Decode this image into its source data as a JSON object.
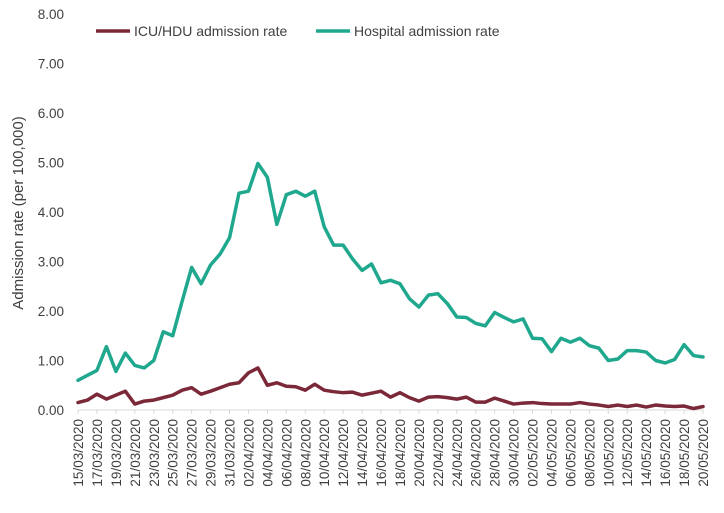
{
  "chart_data": {
    "type": "line",
    "title": "",
    "xlabel": "",
    "ylabel": "Admission rate (per 100,000)",
    "ylim": [
      0,
      8
    ],
    "yticks": [
      "0.00",
      "1.00",
      "2.00",
      "3.00",
      "4.00",
      "5.00",
      "6.00",
      "7.00",
      "8.00"
    ],
    "legend_position": "top-left",
    "grid": false,
    "x": [
      "15/03/2020",
      "16/03/2020",
      "17/03/2020",
      "18/03/2020",
      "19/03/2020",
      "20/03/2020",
      "21/03/2020",
      "22/03/2020",
      "23/03/2020",
      "24/03/2020",
      "25/03/2020",
      "26/03/2020",
      "27/03/2020",
      "28/03/2020",
      "29/03/2020",
      "30/03/2020",
      "31/03/2020",
      "01/04/2020",
      "02/04/2020",
      "03/04/2020",
      "04/04/2020",
      "05/04/2020",
      "06/04/2020",
      "07/04/2020",
      "08/04/2020",
      "09/04/2020",
      "10/04/2020",
      "11/04/2020",
      "12/04/2020",
      "13/04/2020",
      "14/04/2020",
      "15/04/2020",
      "16/04/2020",
      "17/04/2020",
      "18/04/2020",
      "19/04/2020",
      "20/04/2020",
      "21/04/2020",
      "22/04/2020",
      "23/04/2020",
      "24/04/2020",
      "25/04/2020",
      "26/04/2020",
      "27/04/2020",
      "28/04/2020",
      "29/04/2020",
      "30/04/2020",
      "01/05/2020",
      "02/05/2020",
      "03/05/2020",
      "04/05/2020",
      "05/05/2020",
      "06/05/2020",
      "07/05/2020",
      "08/05/2020",
      "09/05/2020",
      "10/05/2020",
      "11/05/2020",
      "12/05/2020",
      "13/05/2020",
      "14/05/2020",
      "15/05/2020",
      "16/05/2020",
      "17/05/2020",
      "18/05/2020",
      "19/05/2020",
      "20/05/2020"
    ],
    "xtick_labels": [
      "15/03/2020",
      "17/03/2020",
      "19/03/2020",
      "21/03/2020",
      "23/03/2020",
      "25/03/2020",
      "27/03/2020",
      "29/03/2020",
      "31/03/2020",
      "02/04/2020",
      "04/04/2020",
      "06/04/2020",
      "08/04/2020",
      "10/04/2020",
      "12/04/2020",
      "14/04/2020",
      "16/04/2020",
      "18/04/2020",
      "20/04/2020",
      "22/04/2020",
      "24/04/2020",
      "26/04/2020",
      "28/04/2020",
      "30/04/2020",
      "02/05/2020",
      "04/05/2020",
      "06/05/2020",
      "08/05/2020",
      "10/05/2020",
      "12/05/2020",
      "14/05/2020",
      "16/05/2020",
      "18/05/2020",
      "20/05/2020"
    ],
    "series": [
      {
        "name": "ICU/HDU admission rate",
        "color": "#7B2838",
        "values": [
          0.15,
          0.2,
          0.32,
          0.22,
          0.3,
          0.38,
          0.12,
          0.18,
          0.2,
          0.25,
          0.3,
          0.4,
          0.45,
          0.32,
          0.38,
          0.45,
          0.52,
          0.55,
          0.75,
          0.85,
          0.5,
          0.55,
          0.48,
          0.47,
          0.4,
          0.52,
          0.4,
          0.37,
          0.35,
          0.36,
          0.3,
          0.34,
          0.38,
          0.26,
          0.35,
          0.25,
          0.18,
          0.26,
          0.27,
          0.25,
          0.22,
          0.26,
          0.16,
          0.16,
          0.24,
          0.18,
          0.12,
          0.14,
          0.15,
          0.13,
          0.12,
          0.12,
          0.12,
          0.15,
          0.12,
          0.1,
          0.07,
          0.1,
          0.07,
          0.1,
          0.06,
          0.1,
          0.08,
          0.07,
          0.08,
          0.03,
          0.07
        ]
      },
      {
        "name": "Hospital admission rate",
        "color": "#1FA88E",
        "values": [
          0.6,
          0.7,
          0.8,
          1.28,
          0.78,
          1.15,
          0.9,
          0.85,
          1.0,
          1.58,
          1.5,
          2.2,
          2.88,
          2.55,
          2.93,
          3.15,
          3.48,
          4.38,
          4.42,
          4.98,
          4.7,
          3.75,
          4.35,
          4.42,
          4.32,
          4.42,
          3.7,
          3.33,
          3.33,
          3.05,
          2.82,
          2.95,
          2.57,
          2.62,
          2.55,
          2.25,
          2.08,
          2.32,
          2.35,
          2.15,
          1.88,
          1.87,
          1.75,
          1.7,
          1.97,
          1.87,
          1.78,
          1.84,
          1.45,
          1.44,
          1.18,
          1.45,
          1.37,
          1.45,
          1.3,
          1.25,
          1.0,
          1.03,
          1.2,
          1.2,
          1.17,
          1.0,
          0.95,
          1.02,
          1.32,
          1.1,
          1.07
        ]
      }
    ]
  }
}
